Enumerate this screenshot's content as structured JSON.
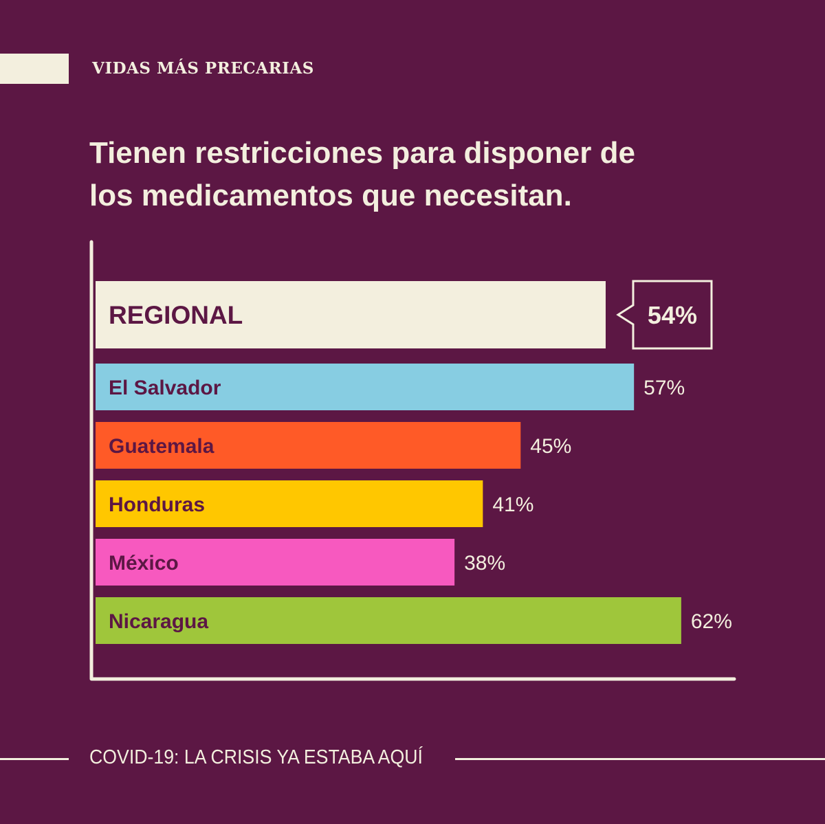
{
  "kicker": "VIDAS MÁS PRECARIAS",
  "title_line1": "Tienen restricciones para disponer de",
  "title_line2": "los medicamentos que necesitan.",
  "footer": "COVID-19: LA CRISIS YA ESTABA AQUÍ",
  "colors": {
    "background": "#5c1744",
    "cream": "#f3efde",
    "label_text": "#5c1744"
  },
  "chart_data": {
    "type": "bar",
    "orientation": "horizontal",
    "title": "Tienen restricciones para disponer de los medicamentos que necesitan.",
    "xlim": [
      0,
      100
    ],
    "categories": [
      "REGIONAL",
      "El Salvador",
      "Guatemala",
      "Honduras",
      "México",
      "Nicaragua"
    ],
    "values": [
      54,
      57,
      45,
      41,
      38,
      62
    ],
    "value_labels": [
      "54%",
      "57%",
      "45%",
      "41%",
      "38%",
      "62%"
    ],
    "bar_colors": [
      "#f3efde",
      "#87cde2",
      "#ff5a27",
      "#ffc700",
      "#f759bf",
      "#9fc63b"
    ],
    "highlight": "REGIONAL"
  }
}
